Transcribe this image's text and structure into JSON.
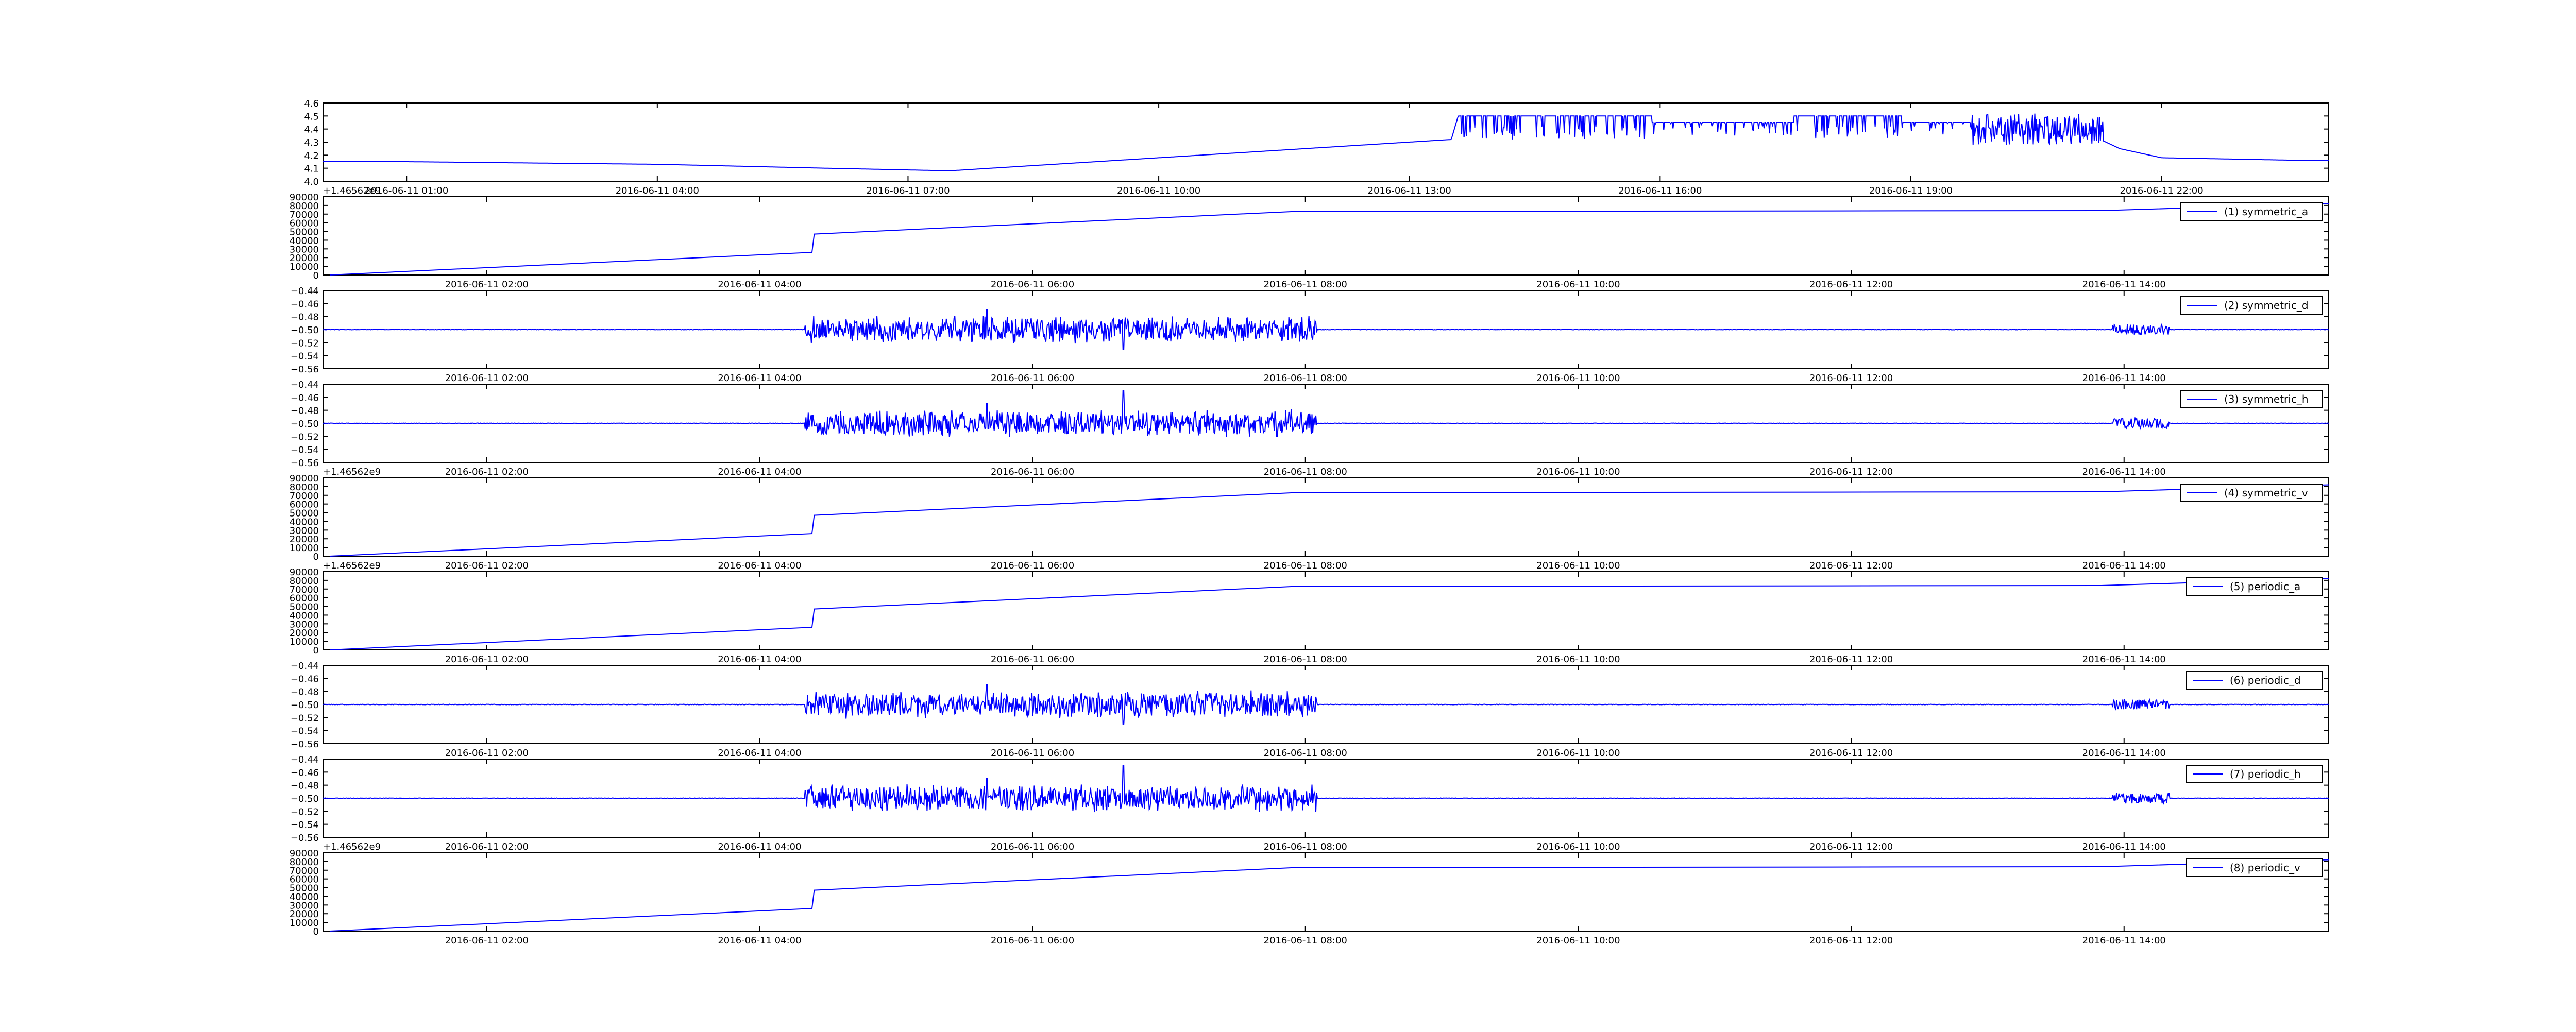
{
  "colors": {
    "line": "#0000ff",
    "axis": "#000000",
    "background": "#ffffff"
  },
  "chart_data": [
    {
      "type": "line",
      "title": "",
      "xlabel": "",
      "ylabel": "",
      "ylim": [
        4.0,
        4.6
      ],
      "y_ticks": [
        "4.0",
        "4.1",
        "4.2",
        "4.3",
        "4.4",
        "4.5",
        "4.6"
      ],
      "x_ticks": [
        "2016-06-11 01:00",
        "2016-06-11 04:00",
        "2016-06-11 07:00",
        "2016-06-11 10:00",
        "2016-06-11 13:00",
        "2016-06-11 16:00",
        "2016-06-11 19:00",
        "2016-06-11 22:00"
      ],
      "series": [
        {
          "x": [
            "2016-06-11 01:00",
            "2016-06-11 04:00",
            "2016-06-11 06:00",
            "2016-06-11 07:30",
            "2016-06-11 10:00",
            "2016-06-11 12:00",
            "2016-06-11 13:30",
            "2016-06-11 13:35",
            "2016-06-11 16:00",
            "2016-06-11 19:00",
            "2016-06-11 20:00",
            "2016-06-11 21:00",
            "2016-06-11 21:30",
            "2016-06-11 22:00",
            "2016-06-11 23:40"
          ],
          "y": [
            4.15,
            4.13,
            4.1,
            4.08,
            4.18,
            4.26,
            4.32,
            4.5,
            4.45,
            4.45,
            4.45,
            4.4,
            4.25,
            4.18,
            4.16
          ]
        }
      ]
    },
    {
      "type": "line",
      "title": "",
      "offset_label": "+1.46562e9",
      "ylim": [
        0,
        90000
      ],
      "y_ticks": [
        "0",
        "10000",
        "20000",
        "30000",
        "40000",
        "50000",
        "60000",
        "70000",
        "80000",
        "90000"
      ],
      "x_ticks": [
        "2016-06-11 02:00",
        "2016-06-11 04:00",
        "2016-06-11 06:00",
        "2016-06-11 08:00",
        "2016-06-11 10:00",
        "2016-06-11 12:00",
        "2016-06-11 14:00"
      ],
      "series": [
        {
          "name": "(1) symmetric_a",
          "x": [
            "2016-06-11 00:51",
            "2016-06-11 04:23",
            "2016-06-11 04:24",
            "2016-06-11 07:55",
            "2016-06-11 13:50",
            "2016-06-11 15:30"
          ],
          "y": [
            0,
            26000,
            47000,
            73000,
            74000,
            82000
          ]
        }
      ]
    },
    {
      "type": "line",
      "title": "",
      "ylim": [
        -0.56,
        -0.44
      ],
      "y_ticks": [
        "−0.56",
        "−0.54",
        "−0.52",
        "−0.50",
        "−0.48",
        "−0.46",
        "−0.44"
      ],
      "x_ticks": [
        "2016-06-11 02:00",
        "2016-06-11 04:00",
        "2016-06-11 06:00",
        "2016-06-11 08:00",
        "2016-06-11 10:00",
        "2016-06-11 12:00",
        "2016-06-11 14:00"
      ],
      "series": [
        {
          "name": "(2) symmetric_d",
          "x": [
            "2016-06-11 00:51",
            "2016-06-11 04:20",
            "2016-06-11 05:40",
            "2016-06-11 06:40",
            "2016-06-11 08:05",
            "2016-06-11 13:55",
            "2016-06-11 14:20",
            "2016-06-11 15:30"
          ],
          "y": [
            -0.5,
            -0.5,
            -0.47,
            -0.53,
            -0.5,
            -0.49,
            -0.5,
            -0.5
          ]
        }
      ]
    },
    {
      "type": "line",
      "title": "",
      "ylim": [
        -0.56,
        -0.44
      ],
      "y_ticks": [
        "−0.56",
        "−0.54",
        "−0.52",
        "−0.50",
        "−0.48",
        "−0.46",
        "−0.44"
      ],
      "x_ticks": [
        "2016-06-11 02:00",
        "2016-06-11 04:00",
        "2016-06-11 06:00",
        "2016-06-11 08:00",
        "2016-06-11 10:00",
        "2016-06-11 12:00",
        "2016-06-11 14:00"
      ],
      "series": [
        {
          "name": "(3) symmetric_h",
          "x": [
            "2016-06-11 00:51",
            "2016-06-11 04:20",
            "2016-06-11 05:40",
            "2016-06-11 06:40",
            "2016-06-11 08:05",
            "2016-06-11 13:55",
            "2016-06-11 14:20",
            "2016-06-11 15:30"
          ],
          "y": [
            -0.5,
            -0.5,
            -0.47,
            -0.45,
            -0.5,
            -0.49,
            -0.5,
            -0.5
          ]
        }
      ]
    },
    {
      "type": "line",
      "title": "",
      "offset_label": "+1.46562e9",
      "ylim": [
        0,
        90000
      ],
      "y_ticks": [
        "0",
        "10000",
        "20000",
        "30000",
        "40000",
        "50000",
        "60000",
        "70000",
        "80000",
        "90000"
      ],
      "x_ticks": [
        "2016-06-11 02:00",
        "2016-06-11 04:00",
        "2016-06-11 06:00",
        "2016-06-11 08:00",
        "2016-06-11 10:00",
        "2016-06-11 12:00",
        "2016-06-11 14:00"
      ],
      "series": [
        {
          "name": "(4) symmetric_v",
          "x": [
            "2016-06-11 00:51",
            "2016-06-11 04:23",
            "2016-06-11 04:24",
            "2016-06-11 07:55",
            "2016-06-11 13:50",
            "2016-06-11 15:30"
          ],
          "y": [
            0,
            26000,
            47000,
            73000,
            74000,
            82000
          ]
        }
      ]
    },
    {
      "type": "line",
      "title": "",
      "offset_label": "+1.46562e9",
      "ylim": [
        0,
        90000
      ],
      "y_ticks": [
        "0",
        "10000",
        "20000",
        "30000",
        "40000",
        "50000",
        "60000",
        "70000",
        "80000",
        "90000"
      ],
      "x_ticks": [
        "2016-06-11 02:00",
        "2016-06-11 04:00",
        "2016-06-11 06:00",
        "2016-06-11 08:00",
        "2016-06-11 10:00",
        "2016-06-11 12:00",
        "2016-06-11 14:00"
      ],
      "series": [
        {
          "name": "(5) periodic_a",
          "x": [
            "2016-06-11 00:51",
            "2016-06-11 04:23",
            "2016-06-11 04:24",
            "2016-06-11 07:55",
            "2016-06-11 13:50",
            "2016-06-11 15:30"
          ],
          "y": [
            0,
            26000,
            47000,
            73000,
            74000,
            82000
          ]
        }
      ]
    },
    {
      "type": "line",
      "title": "",
      "ylim": [
        -0.56,
        -0.44
      ],
      "y_ticks": [
        "−0.56",
        "−0.54",
        "−0.52",
        "−0.50",
        "−0.48",
        "−0.46",
        "−0.44"
      ],
      "x_ticks": [
        "2016-06-11 02:00",
        "2016-06-11 04:00",
        "2016-06-11 06:00",
        "2016-06-11 08:00",
        "2016-06-11 10:00",
        "2016-06-11 12:00",
        "2016-06-11 14:00"
      ],
      "series": [
        {
          "name": "(6) periodic_d",
          "x": [
            "2016-06-11 00:51",
            "2016-06-11 04:20",
            "2016-06-11 05:40",
            "2016-06-11 06:40",
            "2016-06-11 08:05",
            "2016-06-11 13:55",
            "2016-06-11 14:20",
            "2016-06-11 15:30"
          ],
          "y": [
            -0.5,
            -0.5,
            -0.47,
            -0.53,
            -0.5,
            -0.49,
            -0.5,
            -0.5
          ]
        }
      ]
    },
    {
      "type": "line",
      "title": "",
      "ylim": [
        -0.56,
        -0.44
      ],
      "y_ticks": [
        "−0.56",
        "−0.54",
        "−0.52",
        "−0.50",
        "−0.48",
        "−0.46",
        "−0.44"
      ],
      "x_ticks": [
        "2016-06-11 02:00",
        "2016-06-11 04:00",
        "2016-06-11 06:00",
        "2016-06-11 08:00",
        "2016-06-11 10:00",
        "2016-06-11 12:00",
        "2016-06-11 14:00"
      ],
      "series": [
        {
          "name": "(7) periodic_h",
          "x": [
            "2016-06-11 00:51",
            "2016-06-11 04:20",
            "2016-06-11 05:40",
            "2016-06-11 06:40",
            "2016-06-11 08:05",
            "2016-06-11 13:55",
            "2016-06-11 14:20",
            "2016-06-11 15:30"
          ],
          "y": [
            -0.5,
            -0.5,
            -0.47,
            -0.45,
            -0.5,
            -0.49,
            -0.5,
            -0.5
          ]
        }
      ]
    },
    {
      "type": "line",
      "title": "",
      "offset_label": "+1.46562e9",
      "ylim": [
        0,
        90000
      ],
      "y_ticks": [
        "0",
        "10000",
        "20000",
        "30000",
        "40000",
        "50000",
        "60000",
        "70000",
        "80000",
        "90000"
      ],
      "x_ticks": [
        "2016-06-11 02:00",
        "2016-06-11 04:00",
        "2016-06-11 06:00",
        "2016-06-11 08:00",
        "2016-06-11 10:00",
        "2016-06-11 12:00",
        "2016-06-11 14:00"
      ],
      "series": [
        {
          "name": "(8) periodic_v",
          "x": [
            "2016-06-11 00:51",
            "2016-06-11 04:23",
            "2016-06-11 04:24",
            "2016-06-11 07:55",
            "2016-06-11 13:50",
            "2016-06-11 15:30"
          ],
          "y": [
            0,
            26000,
            47000,
            73000,
            74000,
            82000
          ]
        }
      ]
    }
  ]
}
